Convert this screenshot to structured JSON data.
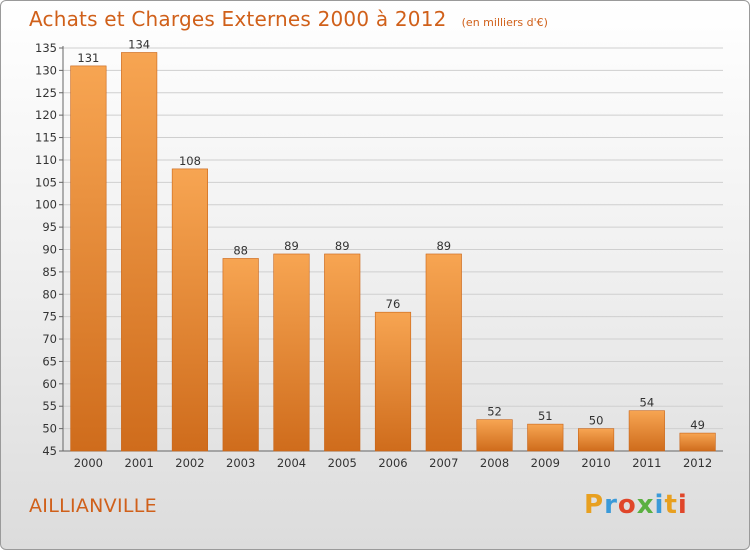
{
  "header": {
    "title": "Achats et Charges Externes 2000 à 2012",
    "subtitle": "(en milliers d'€)"
  },
  "footer": {
    "place": "AILLIANVILLE",
    "logo": [
      "P",
      "r",
      "o",
      "x",
      "i",
      "t",
      "i"
    ]
  },
  "colors": {
    "accent": "#d0601a",
    "bar_top": "#f7a552",
    "bar_bottom": "#cf6c1c",
    "grid": "#cfcfcf"
  },
  "chart_data": {
    "type": "bar",
    "title": "Achats et Charges Externes 2000 à 2012",
    "subtitle": "(en milliers d'€)",
    "categories": [
      "2000",
      "2001",
      "2002",
      "2003",
      "2004",
      "2005",
      "2006",
      "2007",
      "2008",
      "2009",
      "2010",
      "2011",
      "2012"
    ],
    "values": [
      131,
      134,
      108,
      88,
      89,
      89,
      76,
      89,
      52,
      51,
      50,
      54,
      49
    ],
    "xlabel": "",
    "ylabel": "",
    "ylim": [
      45,
      135
    ],
    "yticks": [
      45,
      50,
      55,
      60,
      65,
      70,
      75,
      80,
      85,
      90,
      95,
      100,
      105,
      110,
      115,
      120,
      125,
      130,
      135
    ],
    "grid": true,
    "legend": "none"
  }
}
